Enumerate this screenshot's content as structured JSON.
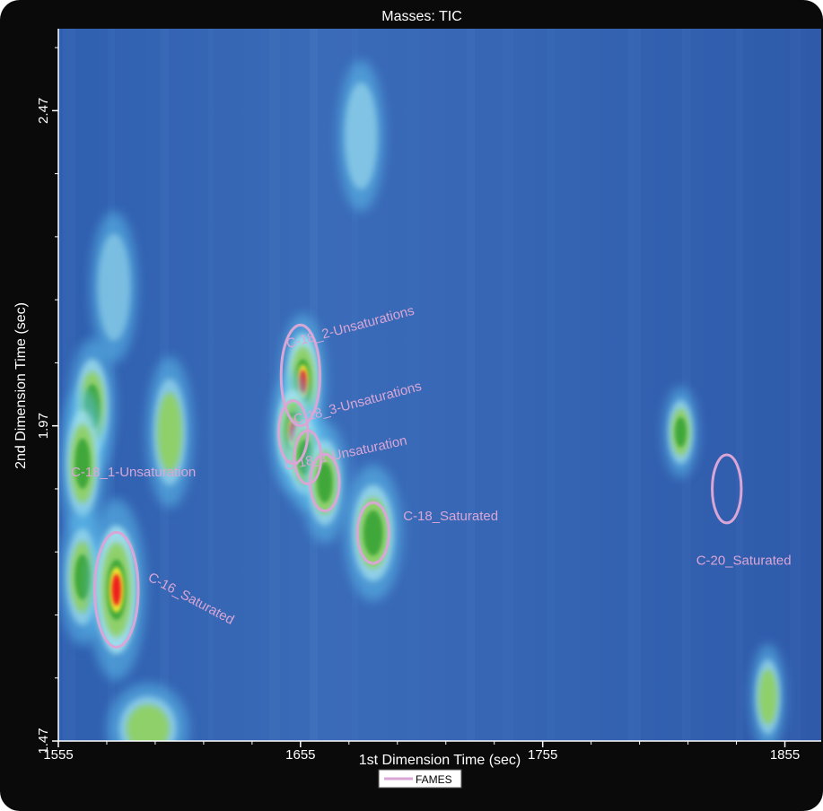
{
  "chart_data": {
    "type": "heatmap",
    "title": "Masses: TIC",
    "xlabel": "1st Dimension Time (sec)",
    "ylabel": "2nd Dimension Time (sec)",
    "xlim": [
      1555,
      1870
    ],
    "ylim": [
      1.47,
      2.6
    ],
    "x_ticks": [
      1555,
      1655,
      1755,
      1855
    ],
    "y_ticks": [
      1.47,
      1.97,
      2.47
    ],
    "legend": {
      "entries": [
        "FAMES"
      ],
      "placement": "bottom-center"
    },
    "colors": {
      "background": "#3968b5",
      "contour": "#d9a6d6",
      "frame": "#0a0a0a",
      "text": "#ffffff"
    },
    "peaks": [
      {
        "x": 1569,
        "y": 2.0,
        "intensity": 0.7,
        "sx": 4,
        "sy": 0.045
      },
      {
        "x": 1565,
        "y": 1.91,
        "intensity": 0.65,
        "sx": 4,
        "sy": 0.05
      },
      {
        "x": 1565,
        "y": 1.73,
        "intensity": 0.6,
        "sx": 4,
        "sy": 0.045
      },
      {
        "x": 1579,
        "y": 1.71,
        "intensity": 1.0,
        "sx": 5,
        "sy": 0.06
      },
      {
        "x": 1601,
        "y": 1.96,
        "intensity": 0.45,
        "sx": 4,
        "sy": 0.05
      },
      {
        "x": 1656,
        "y": 2.04,
        "intensity": 1.0,
        "sx": 4,
        "sy": 0.045
      },
      {
        "x": 1652,
        "y": 1.96,
        "intensity": 1.0,
        "sx": 4,
        "sy": 0.04
      },
      {
        "x": 1657,
        "y": 1.92,
        "intensity": 0.65,
        "sx": 4,
        "sy": 0.035
      },
      {
        "x": 1665,
        "y": 1.88,
        "intensity": 0.65,
        "sx": 4,
        "sy": 0.04
      },
      {
        "x": 1685,
        "y": 1.8,
        "intensity": 0.7,
        "sx": 5,
        "sy": 0.045
      },
      {
        "x": 1680,
        "y": 2.43,
        "intensity": 0.35,
        "sx": 4,
        "sy": 0.05
      },
      {
        "x": 1812,
        "y": 1.96,
        "intensity": 0.6,
        "sx": 3,
        "sy": 0.03
      },
      {
        "x": 1848,
        "y": 1.54,
        "intensity": 0.55,
        "sx": 3,
        "sy": 0.035
      },
      {
        "x": 1592,
        "y": 1.49,
        "intensity": 0.5,
        "sx": 7,
        "sy": 0.03
      },
      {
        "x": 1578,
        "y": 2.19,
        "intensity": 0.25,
        "sx": 4,
        "sy": 0.05
      }
    ],
    "annotations": [
      {
        "label": "C-18_2-Unsaturations",
        "x": 1676,
        "y": 2.12,
        "rotate": -15
      },
      {
        "label": "C-18_3-Unsaturations",
        "x": 1679,
        "y": 2.0,
        "rotate": -15
      },
      {
        "label": "C-18_1-Unsaturation",
        "x": 1674,
        "y": 1.92,
        "rotate": -12
      },
      {
        "label": "C-18_1-Unsaturation",
        "x": 1586,
        "y": 1.89,
        "rotate": 0
      },
      {
        "label": "C-18_Saturated",
        "x": 1717,
        "y": 1.82,
        "rotate": 0
      },
      {
        "label": "C-16_Saturated",
        "x": 1609,
        "y": 1.69,
        "rotate": 28
      },
      {
        "label": "C-20_Saturated",
        "x": 1838,
        "y": 1.75,
        "rotate": 0
      }
    ],
    "contours": [
      {
        "name": "C-16_Saturated",
        "cx": 1579,
        "cy": 1.71,
        "rx": 9,
        "ry": 0.091
      },
      {
        "name": "C-18_2-Unsaturations",
        "cx": 1655,
        "cy": 2.05,
        "rx": 8,
        "ry": 0.08
      },
      {
        "name": "C-18_3-Unsaturations",
        "cx": 1652,
        "cy": 1.96,
        "rx": 6,
        "ry": 0.05
      },
      {
        "name": "C-18_1-Unsaturation",
        "cx": 1658,
        "cy": 1.92,
        "rx": 5.5,
        "ry": 0.042
      },
      {
        "name": "C-18_1-Unsaturation",
        "cx": 1665,
        "cy": 1.88,
        "rx": 6,
        "ry": 0.045
      },
      {
        "name": "C-18_Saturated",
        "cx": 1685,
        "cy": 1.8,
        "rx": 6.5,
        "ry": 0.048
      },
      {
        "name": "C-20_Saturated",
        "cx": 1831,
        "cy": 1.87,
        "rx": 6,
        "ry": 0.054
      }
    ]
  }
}
